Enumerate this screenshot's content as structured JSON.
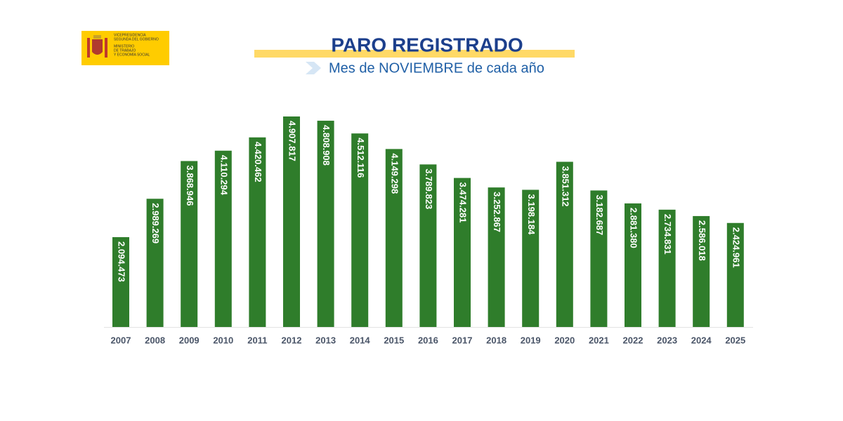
{
  "logo": {
    "lines": [
      "VICEPRESIDENCIA",
      "SEGUNDA DEL GOBIERNO",
      "MINISTERIO",
      "DE TRABAJO",
      "Y ECONOMÍA SOCIAL"
    ]
  },
  "chart_data": {
    "type": "bar",
    "title": "PARO REGISTRADO",
    "subtitle": "Mes de NOVIEMBRE de cada año",
    "categories": [
      "2007",
      "2008",
      "2009",
      "2010",
      "2011",
      "2012",
      "2013",
      "2014",
      "2015",
      "2016",
      "2017",
      "2018",
      "2019",
      "2020",
      "2021",
      "2022",
      "2023",
      "2024",
      "2025"
    ],
    "values": [
      2094473,
      2989269,
      3868946,
      4110294,
      4420462,
      4907817,
      4808908,
      4512116,
      4149298,
      3789823,
      3474281,
      3252867,
      3198184,
      3851312,
      3182687,
      2881380,
      2734831,
      2586018,
      2424961
    ],
    "value_labels": [
      "2.094.473",
      "2.989.269",
      "3.868.946",
      "4.110.294",
      "4.420.462",
      "4.907.817",
      "4.808.908",
      "4.512.116",
      "4.149.298",
      "3.789.823",
      "3.474.281",
      "3.252.867",
      "3.198.184",
      "3.851.312",
      "3.182.687",
      "2.881.380",
      "2.734.831",
      "2.586.018",
      "2.424.961"
    ],
    "color": "#2f7d2b"
  }
}
